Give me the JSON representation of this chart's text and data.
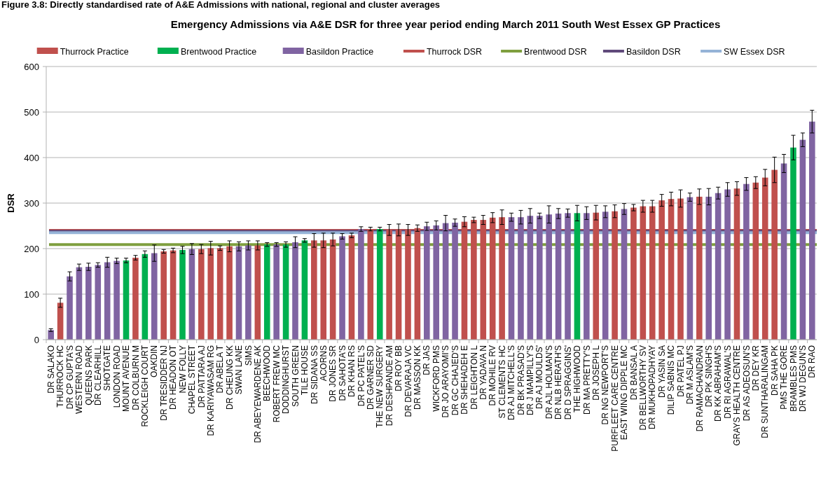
{
  "chart_data": {
    "type": "bar",
    "title": "Emergency Admissions via A&E DSR for three year period ending March 2011 South West Essex GP Practices",
    "ylabel": "DSR",
    "annotations": [
      "Figure 3.8:  Directly standardised rate of A&E Admissions with national, regional and cluster averages"
    ],
    "categories": [
      "DR SALAKO",
      "THURROCK HC",
      "DR CP GUPTA'S",
      "WESTERN ROAD",
      "QUEENS PARK",
      "DR CLEARHILL",
      "SHOTGATE",
      "LONDON ROAD",
      "MOUNT AVENUE",
      "DR COLBURN M",
      "ROCKLEIGH COURT",
      "OAKDIN",
      "DR TRESIDDER NJ",
      "DR HEADON OT",
      "NEW FOLLY",
      "CHAPEL STREET",
      "DR PATTARA AJ",
      "DR KARIYAWASAM RG",
      "DR ABELA T",
      "DR CHEUNG KK",
      "SWAN LANE",
      "SIMS",
      "DR ABEYEWARDENE AK",
      "BEECHWOOD",
      "ROBERT FREW MC",
      "DODDINGHURST",
      "SOUTH GREEN",
      "TILE HOUSE",
      "DR SIDANA SS",
      "ACORNS",
      "DR JONES SR",
      "DR SAHOTA'S",
      "DR KHAN RS",
      "DR PC PATEL'S",
      "DR GARNER SD",
      "THE NEW SURGERY",
      "DR DESHPANDE AM",
      "DR ROY BB",
      "DR DEVARAJA VC",
      "DR MASSON KK",
      "DR JAS",
      "WICKFORD PMS",
      "DR JO ARAYOMI'S",
      "DR GC CHAJED'S",
      "DR SHEHADEH E",
      "DR LEIGHTON L",
      "DR YADAVA N",
      "DR MOHILE RV",
      "ST CLEMENTS HC",
      "DR AJ MITCHELL'S",
      "DR BK PRASAD'S",
      "DR J MAMPILLY'S",
      "DR AJ MOULDS'",
      "DR AJL HOLMAN'S",
      "DR NLB HERATH'S",
      "DR D SPRAGGINS'",
      "THE HIGHWOOD",
      "DR MA PRETTY'S",
      "DR JOSEPH L",
      "DR NG NEWPORT'S",
      "PURFLEET CARE CENTRE",
      "EAST WING DIPPLE MC",
      "DR BANSAL A",
      "DR BELLWORTHY SV",
      "DR MUKHOPADHYAY",
      "DR YASIN SA",
      "DILIP SABNIS MC",
      "DR PATEL PJ",
      "DR M ASLAM'S",
      "DR RAMACHANDRAN",
      "DR PK SINGH'S",
      "DR KK ABRAHAM'S",
      "DR RI AGRAWAL'S",
      "GRAYS HEALTH CENTRE",
      "DR AS ADEOSUN'S",
      "DR DEY KR",
      "DR SUNTHARALINGAM",
      "DR SAHA PK",
      "PMS THE GORE",
      "BRAMBLES PMS",
      "DR WJ DEGUN'S",
      "DR RAO"
    ],
    "series": [
      {
        "name": "Thurrock Practice",
        "color": "#c0504d",
        "values": [
          null,
          81,
          null,
          null,
          null,
          null,
          null,
          null,
          null,
          180,
          null,
          null,
          194,
          196,
          null,
          null,
          199,
          201,
          201,
          205,
          null,
          null,
          207,
          null,
          null,
          null,
          null,
          null,
          218,
          218,
          220,
          null,
          229,
          null,
          243,
          null,
          241,
          241,
          241,
          245,
          null,
          null,
          null,
          null,
          259,
          263,
          263,
          268,
          269,
          null,
          null,
          null,
          null,
          null,
          null,
          null,
          null,
          null,
          279,
          null,
          282,
          null,
          290,
          293,
          293,
          306,
          309,
          310,
          null,
          314,
          null,
          null,
          null,
          332,
          null,
          345,
          356,
          373,
          null,
          null,
          null,
          null
        ],
        "errors": [
          null,
          10,
          null,
          null,
          null,
          null,
          null,
          null,
          null,
          5,
          null,
          null,
          4,
          5,
          null,
          null,
          10,
          15,
          5,
          12,
          null,
          null,
          10,
          null,
          null,
          null,
          null,
          null,
          15,
          16,
          14,
          null,
          5,
          null,
          4,
          null,
          12,
          13,
          12,
          7,
          null,
          null,
          null,
          null,
          11,
          6,
          10,
          11,
          16,
          null,
          null,
          null,
          null,
          null,
          null,
          null,
          null,
          null,
          16,
          null,
          14,
          null,
          7,
          13,
          13,
          13,
          15,
          19,
          null,
          17,
          null,
          null,
          null,
          15,
          null,
          13,
          18,
          28,
          null,
          null,
          null,
          null
        ]
      },
      {
        "name": "Brentwood Practice",
        "color": "#00b050",
        "values": [
          null,
          null,
          null,
          null,
          null,
          null,
          null,
          null,
          174,
          null,
          188,
          null,
          null,
          null,
          197,
          null,
          null,
          null,
          null,
          null,
          null,
          null,
          null,
          209,
          null,
          209,
          null,
          218,
          null,
          null,
          null,
          null,
          null,
          null,
          null,
          243,
          null,
          null,
          null,
          null,
          null,
          null,
          null,
          null,
          null,
          null,
          null,
          null,
          null,
          null,
          null,
          null,
          null,
          null,
          null,
          null,
          278,
          null,
          null,
          null,
          null,
          null,
          null,
          null,
          null,
          null,
          null,
          null,
          null,
          null,
          null,
          null,
          null,
          null,
          null,
          null,
          null,
          null,
          null,
          422,
          null,
          null
        ],
        "errors": [
          null,
          null,
          null,
          null,
          null,
          null,
          null,
          null,
          5,
          null,
          7,
          null,
          null,
          null,
          8,
          null,
          null,
          null,
          null,
          null,
          null,
          null,
          null,
          4,
          null,
          6,
          null,
          4,
          null,
          null,
          null,
          null,
          null,
          null,
          null,
          4,
          null,
          null,
          null,
          null,
          null,
          null,
          null,
          null,
          null,
          null,
          null,
          null,
          null,
          null,
          null,
          null,
          null,
          null,
          null,
          null,
          17,
          null,
          null,
          null,
          null,
          null,
          null,
          null,
          null,
          null,
          null,
          null,
          null,
          null,
          null,
          null,
          null,
          null,
          null,
          null,
          null,
          null,
          null,
          27,
          null,
          null
        ]
      },
      {
        "name": "Basildon Practice",
        "color": "#8064a2",
        "values": [
          21,
          null,
          139,
          159,
          160,
          164,
          170,
          173,
          null,
          null,
          null,
          190,
          null,
          null,
          null,
          199,
          null,
          null,
          null,
          null,
          205,
          207,
          null,
          null,
          209,
          null,
          214,
          null,
          null,
          null,
          null,
          227,
          null,
          243,
          null,
          null,
          null,
          null,
          null,
          null,
          249,
          251,
          256,
          257,
          null,
          null,
          null,
          null,
          null,
          269,
          269,
          272,
          272,
          275,
          277,
          278,
          null,
          278,
          null,
          281,
          null,
          287,
          null,
          null,
          null,
          null,
          null,
          null,
          313,
          null,
          314,
          322,
          330,
          null,
          342,
          null,
          null,
          null,
          387,
          null,
          439,
          479
        ],
        "errors": [
          3,
          null,
          10,
          7,
          8,
          5,
          11,
          6,
          null,
          null,
          null,
          18,
          null,
          null,
          null,
          12,
          null,
          null,
          null,
          null,
          10,
          10,
          null,
          null,
          4,
          null,
          12,
          null,
          null,
          null,
          null,
          6,
          null,
          5,
          null,
          null,
          null,
          null,
          null,
          null,
          9,
          10,
          17,
          8,
          null,
          null,
          null,
          null,
          null,
          9,
          15,
          16,
          6,
          19,
          11,
          9,
          null,
          14,
          null,
          13,
          null,
          12,
          null,
          null,
          null,
          null,
          null,
          null,
          9,
          null,
          18,
          13,
          15,
          null,
          14,
          null,
          null,
          null,
          20,
          null,
          15,
          25
        ]
      }
    ],
    "ref_lines": [
      {
        "axis": "y",
        "value": 240,
        "label": "Thurrock DSR",
        "color": "#c0504d"
      },
      {
        "axis": "y",
        "value": 209,
        "label": "Brentwood DSR",
        "color": "#7f9f3f"
      },
      {
        "axis": "y",
        "value": 238,
        "label": "Basildon DSR",
        "color": "#604a7b"
      },
      {
        "axis": "y",
        "value": 235,
        "label": "SW Essex DSR",
        "color": "#95b3d7"
      }
    ],
    "ylim": [
      0,
      600
    ],
    "yticks": [
      0,
      100,
      200,
      300,
      400,
      500,
      600
    ],
    "grid": "y",
    "legend": "top"
  }
}
